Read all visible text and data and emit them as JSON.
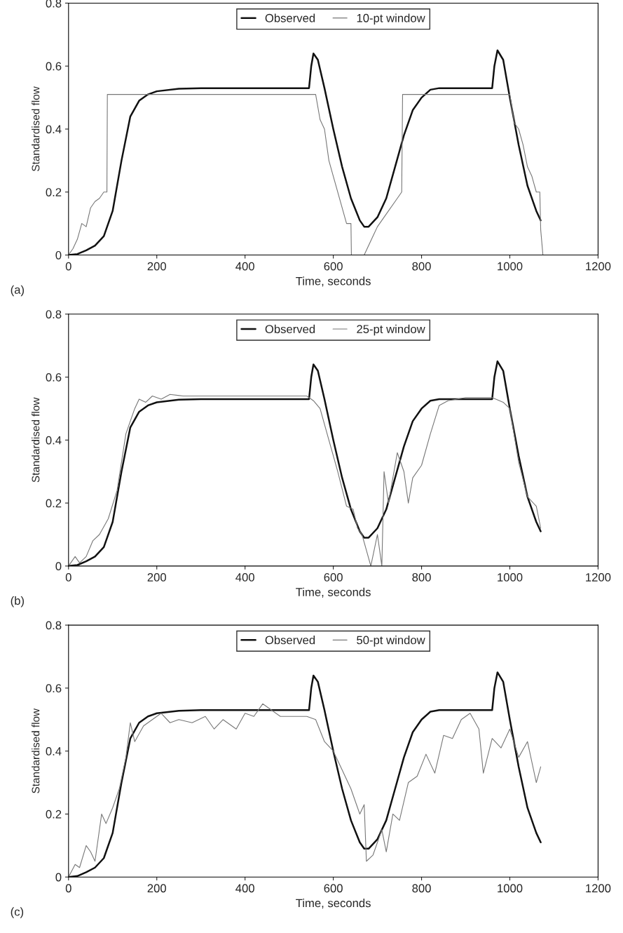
{
  "chart_data": [
    {
      "type": "line",
      "xlabel": "Time, seconds",
      "ylabel": "Standardised flow",
      "annotations": [
        "(a)"
      ],
      "xlim": [
        0,
        1200
      ],
      "xticks": [
        0,
        200,
        400,
        600,
        800,
        1000,
        1200
      ],
      "ylim": [
        0,
        0.8
      ],
      "yticks": [
        0,
        0.2,
        0.4,
        0.6,
        0.8
      ],
      "legend": "top",
      "grid": false,
      "series": [
        {
          "name": "Observed",
          "color": "#111111",
          "x": [
            0,
            20,
            40,
            60,
            80,
            100,
            120,
            140,
            160,
            180,
            200,
            250,
            300,
            400,
            545,
            550,
            555,
            565,
            580,
            600,
            620,
            640,
            660,
            670,
            680,
            700,
            720,
            740,
            760,
            780,
            800,
            820,
            840,
            960,
            965,
            972,
            985,
            1000,
            1020,
            1040,
            1060,
            1070
          ],
          "values": [
            0,
            0.003,
            0.015,
            0.03,
            0.06,
            0.14,
            0.3,
            0.44,
            0.49,
            0.51,
            0.52,
            0.528,
            0.53,
            0.53,
            0.53,
            0.6,
            0.64,
            0.62,
            0.53,
            0.4,
            0.28,
            0.18,
            0.11,
            0.09,
            0.09,
            0.12,
            0.18,
            0.28,
            0.38,
            0.46,
            0.5,
            0.525,
            0.53,
            0.53,
            0.6,
            0.65,
            0.62,
            0.5,
            0.35,
            0.22,
            0.14,
            0.11
          ]
        },
        {
          "name": "10-pt window",
          "color": "#777777",
          "x": [
            0,
            10,
            20,
            30,
            40,
            50,
            60,
            70,
            80,
            87,
            88,
            560,
            570,
            580,
            590,
            600,
            620,
            630,
            640,
            641,
            670,
            680,
            690,
            700,
            720,
            740,
            755,
            757,
            1000,
            1010,
            1020,
            1030,
            1040,
            1050,
            1060,
            1068,
            1070,
            1075
          ],
          "values": [
            0,
            0.02,
            0.05,
            0.1,
            0.09,
            0.15,
            0.17,
            0.18,
            0.2,
            0.2,
            0.51,
            0.51,
            0.43,
            0.4,
            0.3,
            0.25,
            0.15,
            0.1,
            0.1,
            0,
            0,
            0.03,
            0.06,
            0.09,
            0.13,
            0.17,
            0.2,
            0.51,
            0.51,
            0.42,
            0.4,
            0.35,
            0.28,
            0.25,
            0.2,
            0.2,
            0.08,
            0
          ]
        }
      ]
    },
    {
      "type": "line",
      "xlabel": "Time, seconds",
      "ylabel": "Standardised flow",
      "annotations": [
        "(b)"
      ],
      "xlim": [
        0,
        1200
      ],
      "xticks": [
        0,
        200,
        400,
        600,
        800,
        1000,
        1200
      ],
      "ylim": [
        0,
        0.8
      ],
      "yticks": [
        0,
        0.2,
        0.4,
        0.6,
        0.8
      ],
      "legend": "top",
      "grid": false,
      "series": [
        {
          "name": "Observed",
          "color": "#111111",
          "x": [
            0,
            20,
            40,
            60,
            80,
            100,
            120,
            140,
            160,
            180,
            200,
            250,
            300,
            400,
            545,
            550,
            555,
            565,
            580,
            600,
            620,
            640,
            660,
            670,
            680,
            700,
            720,
            740,
            760,
            780,
            800,
            820,
            840,
            960,
            965,
            972,
            985,
            1000,
            1020,
            1040,
            1060,
            1070
          ],
          "values": [
            0,
            0.003,
            0.015,
            0.03,
            0.06,
            0.14,
            0.3,
            0.44,
            0.49,
            0.51,
            0.52,
            0.528,
            0.53,
            0.53,
            0.53,
            0.6,
            0.64,
            0.62,
            0.53,
            0.4,
            0.28,
            0.18,
            0.11,
            0.09,
            0.09,
            0.12,
            0.18,
            0.28,
            0.38,
            0.46,
            0.5,
            0.525,
            0.53,
            0.53,
            0.6,
            0.65,
            0.62,
            0.5,
            0.35,
            0.22,
            0.14,
            0.11
          ]
        },
        {
          "name": "25-pt window",
          "color": "#777777",
          "x": [
            0,
            15,
            25,
            40,
            55,
            70,
            90,
            110,
            130,
            150,
            160,
            175,
            190,
            210,
            230,
            260,
            540,
            555,
            570,
            590,
            610,
            630,
            645,
            655,
            665,
            675,
            685,
            700,
            710,
            715,
            725,
            745,
            760,
            770,
            780,
            800,
            820,
            840,
            860,
            900,
            960,
            985,
            1000,
            1020,
            1040,
            1060,
            1070
          ],
          "values": [
            0,
            0.03,
            0.01,
            0.03,
            0.08,
            0.1,
            0.15,
            0.24,
            0.42,
            0.5,
            0.53,
            0.52,
            0.54,
            0.53,
            0.545,
            0.54,
            0.54,
            0.525,
            0.5,
            0.4,
            0.3,
            0.19,
            0.18,
            0.12,
            0.1,
            0.05,
            0,
            0.1,
            0,
            0.3,
            0.2,
            0.36,
            0.3,
            0.2,
            0.28,
            0.32,
            0.42,
            0.51,
            0.525,
            0.535,
            0.535,
            0.52,
            0.5,
            0.33,
            0.22,
            0.19,
            0.12
          ]
        }
      ]
    },
    {
      "type": "line",
      "xlabel": "Time, seconds",
      "ylabel": "Standardised flow",
      "annotations": [
        "(c)"
      ],
      "xlim": [
        0,
        1200
      ],
      "xticks": [
        0,
        200,
        400,
        600,
        800,
        1000,
        1200
      ],
      "ylim": [
        0,
        0.8
      ],
      "yticks": [
        0,
        0.2,
        0.4,
        0.6,
        0.8
      ],
      "legend": "top",
      "grid": false,
      "series": [
        {
          "name": "Observed",
          "color": "#111111",
          "x": [
            0,
            20,
            40,
            60,
            80,
            100,
            120,
            140,
            160,
            180,
            200,
            250,
            300,
            400,
            545,
            550,
            555,
            565,
            580,
            600,
            620,
            640,
            660,
            670,
            680,
            700,
            720,
            740,
            760,
            780,
            800,
            820,
            840,
            960,
            965,
            972,
            985,
            1000,
            1020,
            1040,
            1060,
            1070
          ],
          "values": [
            0,
            0.003,
            0.015,
            0.03,
            0.06,
            0.14,
            0.3,
            0.44,
            0.49,
            0.51,
            0.52,
            0.528,
            0.53,
            0.53,
            0.53,
            0.6,
            0.64,
            0.62,
            0.53,
            0.4,
            0.28,
            0.18,
            0.11,
            0.09,
            0.09,
            0.12,
            0.18,
            0.28,
            0.38,
            0.46,
            0.5,
            0.525,
            0.53,
            0.53,
            0.6,
            0.65,
            0.62,
            0.5,
            0.35,
            0.22,
            0.14,
            0.11
          ]
        },
        {
          "name": "50-pt window",
          "color": "#777777",
          "x": [
            0,
            15,
            25,
            40,
            50,
            60,
            75,
            85,
            100,
            115,
            130,
            140,
            150,
            170,
            190,
            210,
            230,
            250,
            280,
            310,
            330,
            350,
            380,
            400,
            420,
            440,
            460,
            480,
            500,
            540,
            560,
            580,
            600,
            620,
            640,
            660,
            670,
            675,
            690,
            710,
            720,
            735,
            750,
            770,
            790,
            810,
            830,
            850,
            870,
            890,
            910,
            930,
            940,
            960,
            980,
            1000,
            1020,
            1040,
            1060,
            1070
          ],
          "values": [
            0,
            0.04,
            0.03,
            0.1,
            0.08,
            0.05,
            0.2,
            0.17,
            0.22,
            0.28,
            0.38,
            0.49,
            0.43,
            0.48,
            0.5,
            0.52,
            0.49,
            0.5,
            0.49,
            0.51,
            0.47,
            0.5,
            0.47,
            0.52,
            0.51,
            0.55,
            0.53,
            0.51,
            0.51,
            0.51,
            0.5,
            0.43,
            0.4,
            0.34,
            0.28,
            0.2,
            0.23,
            0.05,
            0.07,
            0.15,
            0.08,
            0.2,
            0.18,
            0.3,
            0.32,
            0.39,
            0.33,
            0.45,
            0.44,
            0.5,
            0.52,
            0.47,
            0.33,
            0.44,
            0.41,
            0.47,
            0.38,
            0.43,
            0.3,
            0.35
          ]
        }
      ]
    }
  ]
}
